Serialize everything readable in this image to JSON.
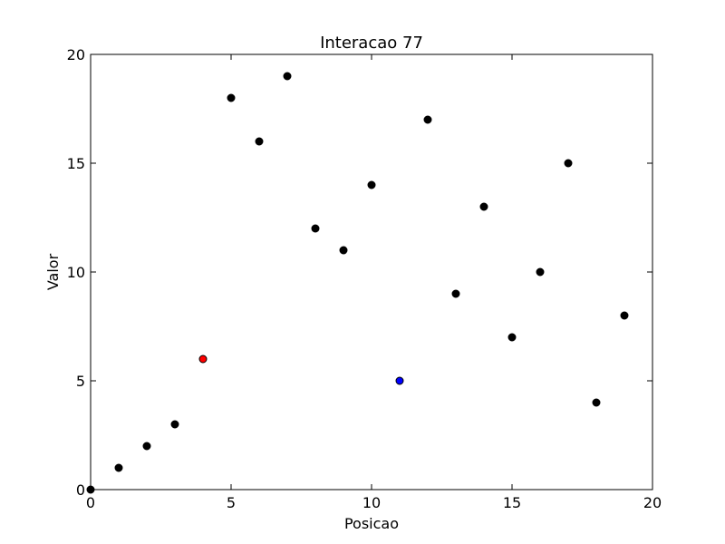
{
  "chart_data": {
    "type": "scatter",
    "title": "Interacao 77",
    "xlabel": "Posicao",
    "ylabel": "Valor",
    "xlim": [
      0,
      20
    ],
    "ylim": [
      0,
      20
    ],
    "xticks": [
      0,
      5,
      10,
      15,
      20
    ],
    "yticks": [
      0,
      5,
      10,
      15,
      20
    ],
    "grid": false,
    "colors": {
      "default": "#000000",
      "highlight_red": "#ff0000",
      "highlight_blue": "#0000ff"
    },
    "points": [
      {
        "x": 0,
        "y": 0,
        "color": "#000000"
      },
      {
        "x": 1,
        "y": 1,
        "color": "#000000"
      },
      {
        "x": 2,
        "y": 2,
        "color": "#000000"
      },
      {
        "x": 3,
        "y": 3,
        "color": "#000000"
      },
      {
        "x": 4,
        "y": 6,
        "color": "#ff0000"
      },
      {
        "x": 5,
        "y": 18,
        "color": "#000000"
      },
      {
        "x": 6,
        "y": 16,
        "color": "#000000"
      },
      {
        "x": 7,
        "y": 19,
        "color": "#000000"
      },
      {
        "x": 8,
        "y": 12,
        "color": "#000000"
      },
      {
        "x": 9,
        "y": 11,
        "color": "#000000"
      },
      {
        "x": 10,
        "y": 14,
        "color": "#000000"
      },
      {
        "x": 11,
        "y": 5,
        "color": "#0000ff"
      },
      {
        "x": 12,
        "y": 17,
        "color": "#000000"
      },
      {
        "x": 13,
        "y": 9,
        "color": "#000000"
      },
      {
        "x": 14,
        "y": 13,
        "color": "#000000"
      },
      {
        "x": 15,
        "y": 7,
        "color": "#000000"
      },
      {
        "x": 16,
        "y": 10,
        "color": "#000000"
      },
      {
        "x": 17,
        "y": 15,
        "color": "#000000"
      },
      {
        "x": 18,
        "y": 4,
        "color": "#000000"
      },
      {
        "x": 19,
        "y": 8,
        "color": "#000000"
      }
    ]
  }
}
